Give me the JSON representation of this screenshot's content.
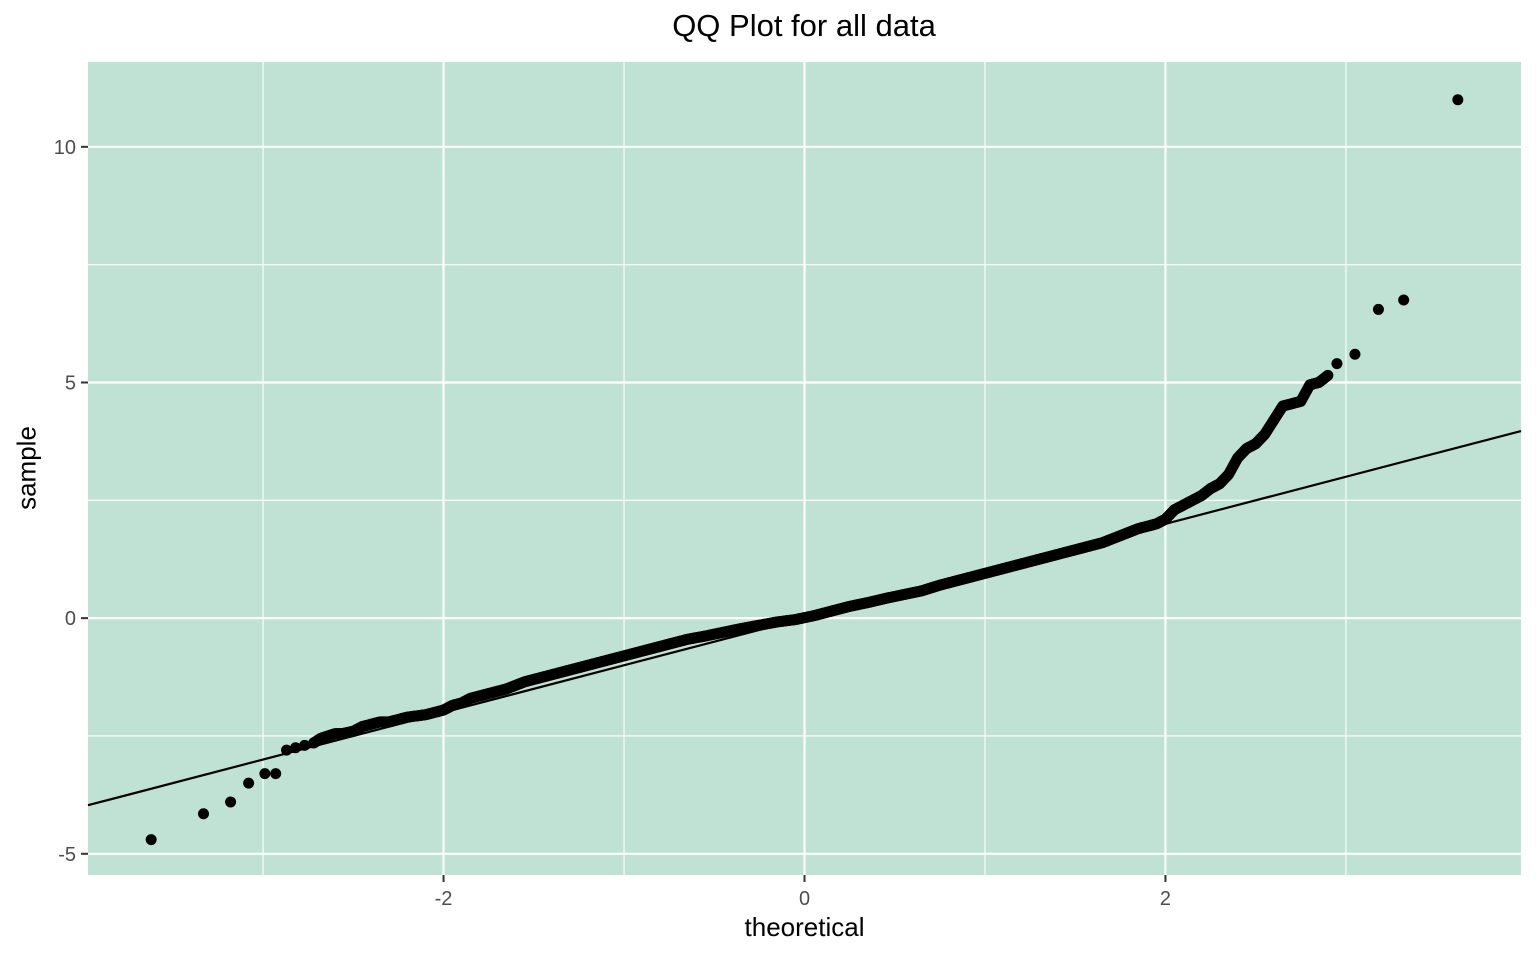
{
  "chart_data": {
    "type": "scatter",
    "title": "QQ Plot for all data",
    "xlabel": "theoretical",
    "ylabel": "sample",
    "xlim": [
      -3.97,
      3.97
    ],
    "ylim": [
      -5.45,
      11.8
    ],
    "x_ticks": [
      -2,
      0,
      2
    ],
    "x_tick_labels": [
      "-2",
      "0",
      "2"
    ],
    "y_ticks": [
      -5,
      0,
      5,
      10
    ],
    "y_tick_labels": [
      "-5",
      "0",
      "5",
      "10"
    ],
    "grid": true,
    "legend": "none",
    "background_color": "#c0e2d4",
    "point_color": "#000000",
    "reference_line": {
      "slope": 1.0,
      "intercept": 0.0
    },
    "x": [
      -3.62,
      -3.33,
      -3.18,
      -3.08,
      -2.99,
      -2.93,
      -2.87,
      -2.82,
      -2.77,
      -2.72,
      -2.68,
      -2.64,
      -2.6,
      -2.56,
      -2.5,
      -2.45,
      -2.4,
      -2.35,
      -2.3,
      -2.25,
      -2.2,
      -2.1,
      -2.0,
      -1.95,
      -1.9,
      -1.85,
      -1.75,
      -1.65,
      -1.55,
      -1.45,
      -1.35,
      -1.25,
      -1.15,
      -1.05,
      -0.95,
      -0.85,
      -0.75,
      -0.65,
      -0.55,
      -0.45,
      -0.35,
      -0.25,
      -0.15,
      -0.05,
      0.05,
      0.15,
      0.25,
      0.35,
      0.45,
      0.55,
      0.65,
      0.75,
      0.85,
      0.95,
      1.05,
      1.15,
      1.25,
      1.35,
      1.45,
      1.55,
      1.65,
      1.75,
      1.85,
      1.9,
      1.95,
      2.0,
      2.05,
      2.1,
      2.15,
      2.2,
      2.25,
      2.3,
      2.35,
      2.4,
      2.45,
      2.5,
      2.55,
      2.6,
      2.65,
      2.7,
      2.75,
      2.8,
      2.85,
      2.9,
      2.95,
      3.05,
      3.18,
      3.32,
      3.62
    ],
    "y": [
      -4.7,
      -4.15,
      -3.9,
      -3.5,
      -3.3,
      -3.3,
      -2.8,
      -2.75,
      -2.7,
      -2.65,
      -2.55,
      -2.5,
      -2.45,
      -2.45,
      -2.4,
      -2.3,
      -2.25,
      -2.2,
      -2.2,
      -2.15,
      -2.1,
      -2.05,
      -1.95,
      -1.85,
      -1.8,
      -1.7,
      -1.6,
      -1.5,
      -1.35,
      -1.25,
      -1.15,
      -1.05,
      -0.95,
      -0.85,
      -0.75,
      -0.65,
      -0.55,
      -0.45,
      -0.38,
      -0.3,
      -0.22,
      -0.15,
      -0.08,
      -0.03,
      0.05,
      0.15,
      0.25,
      0.33,
      0.42,
      0.5,
      0.58,
      0.7,
      0.8,
      0.9,
      1.0,
      1.1,
      1.2,
      1.3,
      1.4,
      1.5,
      1.6,
      1.75,
      1.9,
      1.95,
      2.0,
      2.1,
      2.3,
      2.4,
      2.5,
      2.6,
      2.75,
      2.85,
      3.05,
      3.4,
      3.6,
      3.7,
      3.9,
      4.2,
      4.5,
      4.55,
      4.6,
      4.95,
      5.0,
      5.15,
      5.4,
      5.6,
      6.55,
      6.75,
      11.0
    ]
  }
}
